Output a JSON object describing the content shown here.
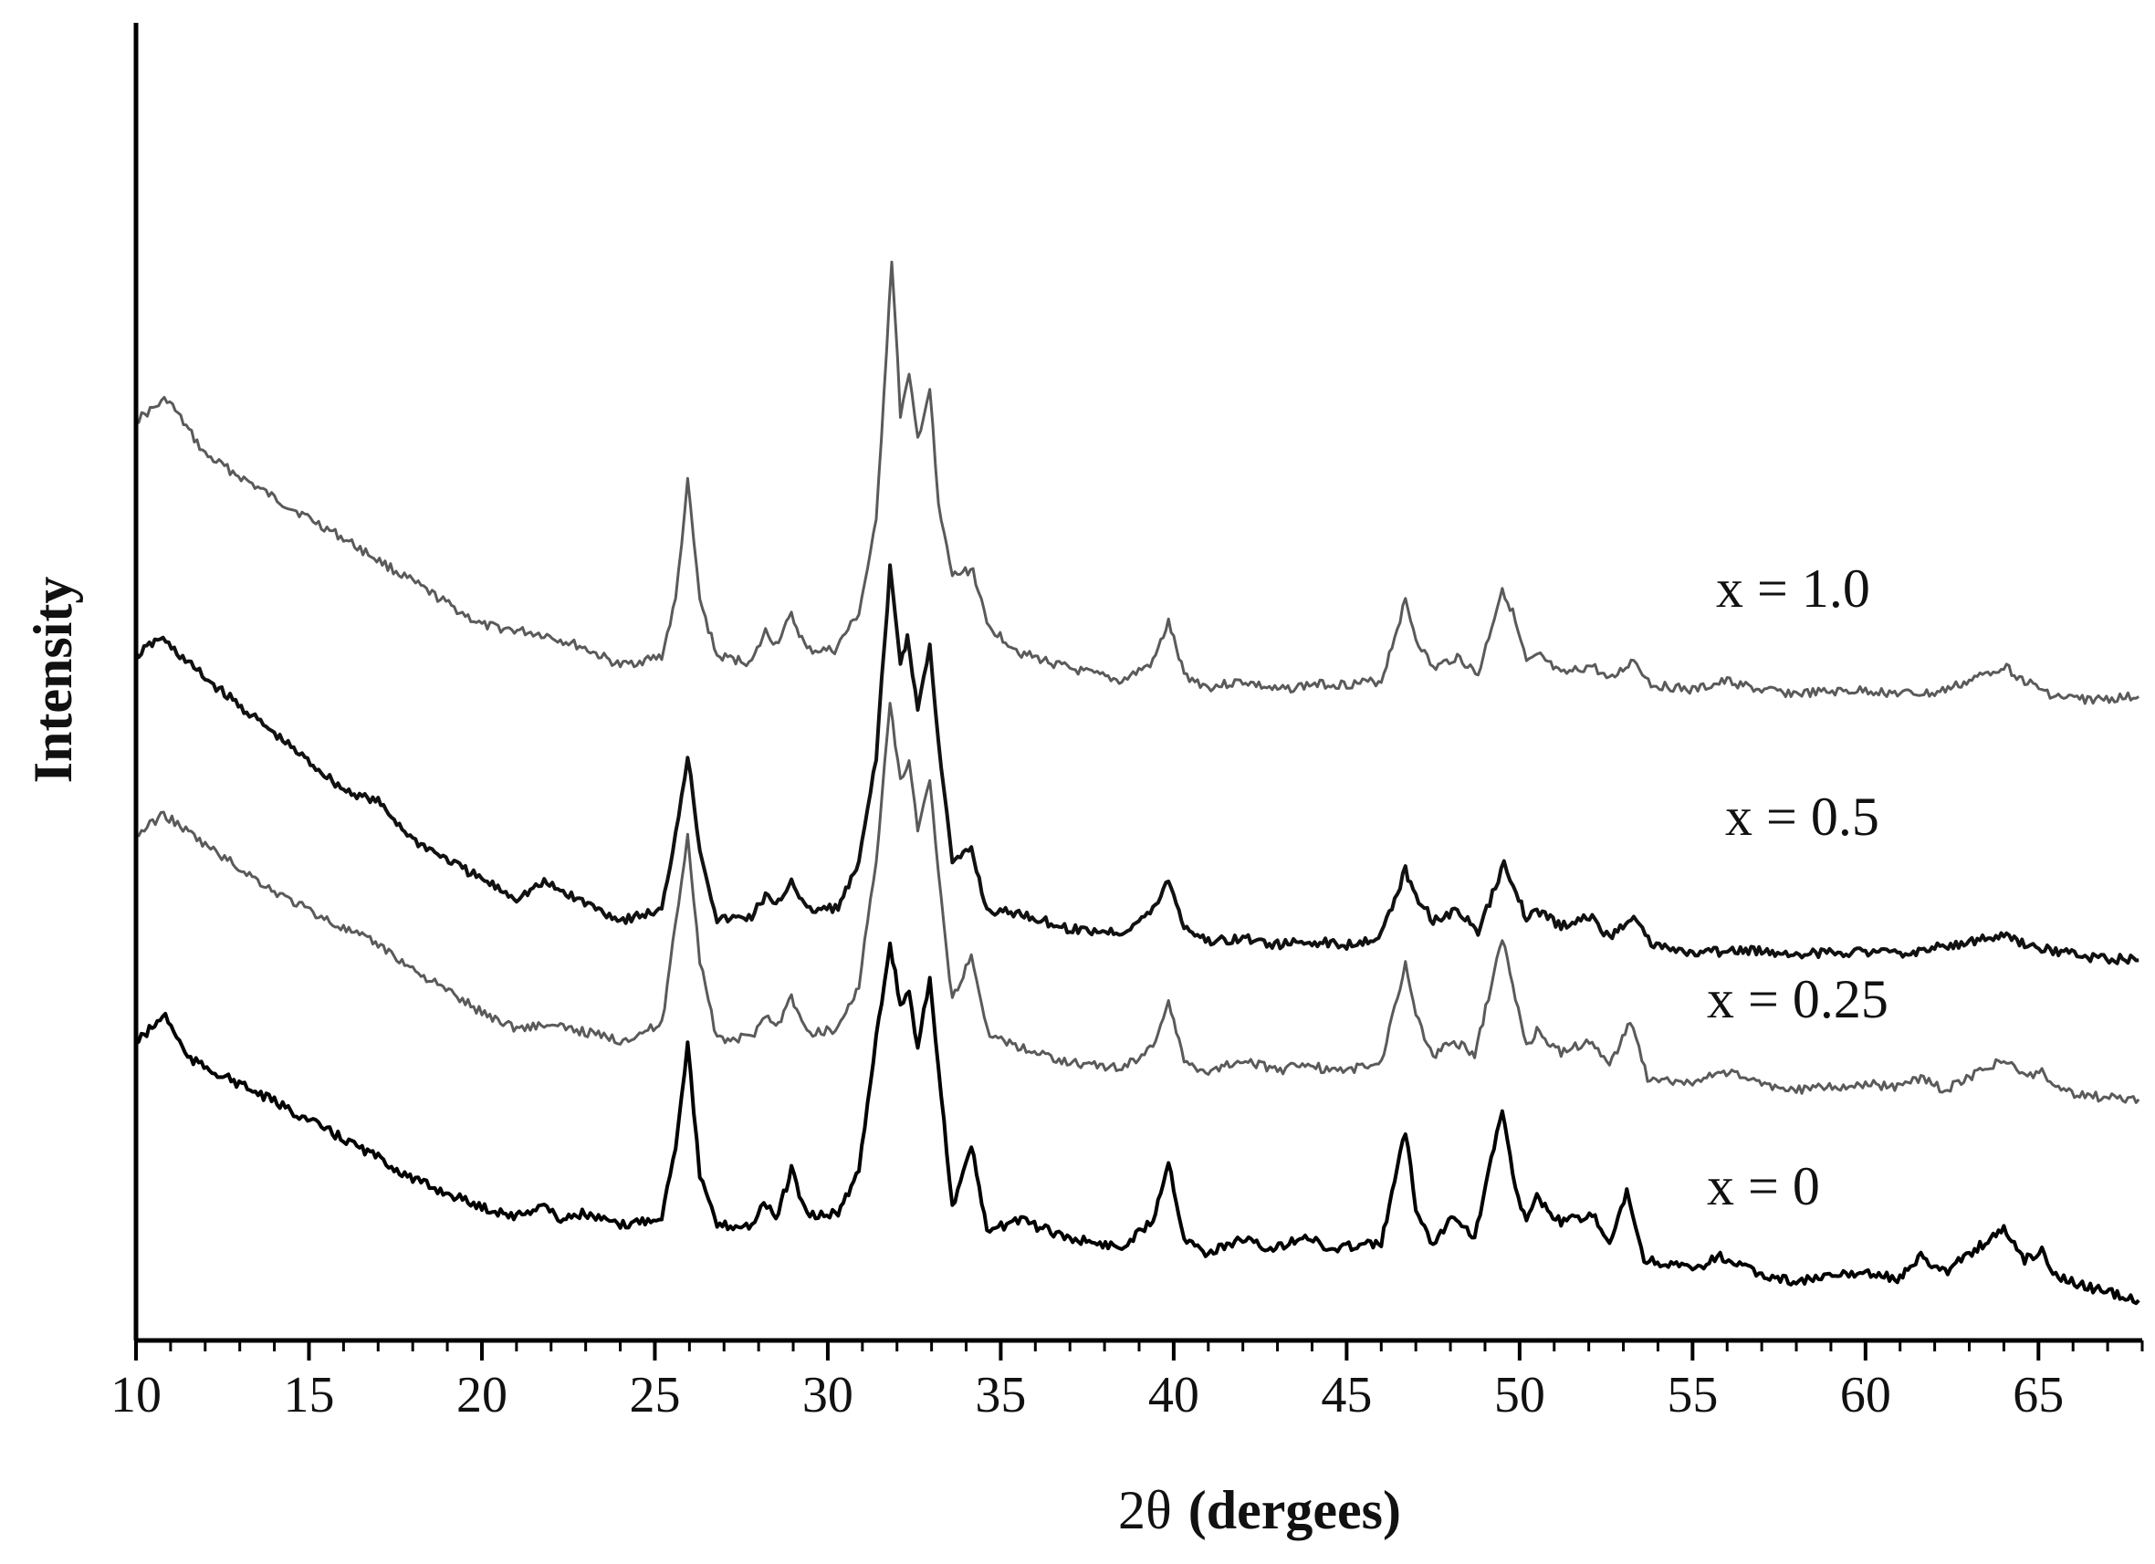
{
  "chart_data": {
    "type": "line",
    "title": "",
    "xlabel_symbol": "2θ",
    "xlabel_unit": "(dergees)",
    "ylabel": "Intensity",
    "xlim": [
      10,
      68
    ],
    "x_ticks": [
      10,
      15,
      20,
      25,
      30,
      35,
      40,
      45,
      50,
      55,
      60,
      65
    ],
    "y_tick_labels": false,
    "grid": false,
    "legend": "inline labels at right",
    "series": [
      {
        "name": "x = 1.0",
        "color": "#5a5a5a",
        "points": [
          [
            10,
            0.88
          ],
          [
            10.9,
            0.95
          ],
          [
            12,
            0.77
          ],
          [
            14,
            0.63
          ],
          [
            16,
            0.5
          ],
          [
            18,
            0.36
          ],
          [
            20,
            0.22
          ],
          [
            21.8,
            0.19
          ],
          [
            22.9,
            0.15
          ],
          [
            24,
            0.09
          ],
          [
            25.2,
            0.12
          ],
          [
            25.6,
            0.3
          ],
          [
            25.95,
            0.68
          ],
          [
            26.3,
            0.3
          ],
          [
            26.8,
            0.12
          ],
          [
            27.8,
            0.1
          ],
          [
            28.2,
            0.2
          ],
          [
            28.5,
            0.16
          ],
          [
            28.95,
            0.25
          ],
          [
            29.4,
            0.14
          ],
          [
            30.2,
            0.14
          ],
          [
            30.9,
            0.26
          ],
          [
            31.4,
            0.55
          ],
          [
            31.85,
            1.4
          ],
          [
            32.1,
            0.9
          ],
          [
            32.35,
            1.02
          ],
          [
            32.6,
            0.82
          ],
          [
            32.95,
            0.98
          ],
          [
            33.2,
            0.6
          ],
          [
            33.6,
            0.38
          ],
          [
            34.2,
            0.4
          ],
          [
            34.6,
            0.22
          ],
          [
            35.6,
            0.13
          ],
          [
            37,
            0.08
          ],
          [
            38.5,
            0.04
          ],
          [
            39.4,
            0.1
          ],
          [
            39.85,
            0.23
          ],
          [
            40.3,
            0.06
          ],
          [
            41,
            0.02
          ],
          [
            42,
            0.04
          ],
          [
            43,
            0.01
          ],
          [
            44,
            0.03
          ],
          [
            45,
            0.03
          ],
          [
            46,
            0.04
          ],
          [
            46.7,
            0.3
          ],
          [
            47,
            0.18
          ],
          [
            47.5,
            0.08
          ],
          [
            48.2,
            0.12
          ],
          [
            48.8,
            0.06
          ],
          [
            49.5,
            0.34
          ],
          [
            49.8,
            0.26
          ],
          [
            50.2,
            0.1
          ],
          [
            50.6,
            0.12
          ],
          [
            51.2,
            0.06
          ],
          [
            52.1,
            0.09
          ],
          [
            52.6,
            0.04
          ],
          [
            53.3,
            0.11
          ],
          [
            53.8,
            0.03
          ],
          [
            55,
            0.01
          ],
          [
            56,
            0.04
          ],
          [
            57,
            0.01
          ],
          [
            58,
            0.0
          ],
          [
            60,
            0.01
          ],
          [
            61,
            0.0
          ],
          [
            62,
            0.0
          ],
          [
            63,
            0.04
          ],
          [
            64,
            0.09
          ],
          [
            64.6,
            0.04
          ],
          [
            65.5,
            -0.01
          ],
          [
            66.5,
            -0.02
          ],
          [
            67.9,
            -0.01
          ]
        ]
      },
      {
        "name": "x = 0.5",
        "color": "#111111",
        "points": [
          [
            10,
            0.87
          ],
          [
            10.7,
            0.93
          ],
          [
            12,
            0.8
          ],
          [
            14,
            0.62
          ],
          [
            16,
            0.44
          ],
          [
            17,
            0.4
          ],
          [
            18,
            0.28
          ],
          [
            20,
            0.15
          ],
          [
            21,
            0.09
          ],
          [
            21.8,
            0.14
          ],
          [
            22.9,
            0.08
          ],
          [
            24,
            0.02
          ],
          [
            25.2,
            0.05
          ],
          [
            25.6,
            0.3
          ],
          [
            25.95,
            0.55
          ],
          [
            26.3,
            0.25
          ],
          [
            26.8,
            0.02
          ],
          [
            27.8,
            0.03
          ],
          [
            28.2,
            0.1
          ],
          [
            28.5,
            0.06
          ],
          [
            28.95,
            0.15
          ],
          [
            29.4,
            0.05
          ],
          [
            30.3,
            0.06
          ],
          [
            30.9,
            0.2
          ],
          [
            31.4,
            0.55
          ],
          [
            31.8,
            1.15
          ],
          [
            32.1,
            0.85
          ],
          [
            32.3,
            0.93
          ],
          [
            32.6,
            0.7
          ],
          [
            32.95,
            0.9
          ],
          [
            33.2,
            0.6
          ],
          [
            33.6,
            0.2
          ],
          [
            34.15,
            0.25
          ],
          [
            34.6,
            0.05
          ],
          [
            35.6,
            0.04
          ],
          [
            37,
            -0.01
          ],
          [
            38.5,
            -0.02
          ],
          [
            39.4,
            0.05
          ],
          [
            39.85,
            0.15
          ],
          [
            40.3,
            0.0
          ],
          [
            41,
            -0.05
          ],
          [
            42,
            -0.04
          ],
          [
            43,
            -0.06
          ],
          [
            44,
            -0.05
          ],
          [
            45,
            -0.06
          ],
          [
            46,
            -0.03
          ],
          [
            46.7,
            0.18
          ],
          [
            47,
            0.1
          ],
          [
            47.5,
            0.02
          ],
          [
            48.2,
            0.05
          ],
          [
            48.8,
            -0.02
          ],
          [
            49.55,
            0.2
          ],
          [
            49.9,
            0.12
          ],
          [
            50.2,
            0.02
          ],
          [
            50.5,
            0.05
          ],
          [
            51.2,
            0.0
          ],
          [
            52.1,
            0.03
          ],
          [
            52.6,
            -0.04
          ],
          [
            53.3,
            0.04
          ],
          [
            53.8,
            -0.06
          ],
          [
            55,
            -0.09
          ],
          [
            56,
            -0.08
          ],
          [
            57,
            -0.08
          ],
          [
            58,
            -0.09
          ],
          [
            60,
            -0.08
          ],
          [
            61,
            -0.09
          ],
          [
            62,
            -0.07
          ],
          [
            63,
            -0.05
          ],
          [
            64,
            -0.03
          ],
          [
            64.6,
            -0.06
          ],
          [
            65.5,
            -0.08
          ],
          [
            66.5,
            -0.1
          ],
          [
            67.9,
            -0.11
          ]
        ]
      },
      {
        "name": "x = 0.25",
        "color": "#5a5a5a",
        "points": [
          [
            10,
            0.88
          ],
          [
            10.8,
            0.95
          ],
          [
            12,
            0.85
          ],
          [
            14,
            0.7
          ],
          [
            16,
            0.58
          ],
          [
            17,
            0.53
          ],
          [
            18,
            0.45
          ],
          [
            20,
            0.31
          ],
          [
            21,
            0.26
          ],
          [
            21.8,
            0.27
          ],
          [
            22.9,
            0.25
          ],
          [
            24,
            0.22
          ],
          [
            25.2,
            0.27
          ],
          [
            25.6,
            0.6
          ],
          [
            25.95,
            0.88
          ],
          [
            26.3,
            0.48
          ],
          [
            26.8,
            0.22
          ],
          [
            27.8,
            0.23
          ],
          [
            28.2,
            0.31
          ],
          [
            28.5,
            0.26
          ],
          [
            28.95,
            0.36
          ],
          [
            29.4,
            0.24
          ],
          [
            30.3,
            0.26
          ],
          [
            30.9,
            0.4
          ],
          [
            31.4,
            0.8
          ],
          [
            31.8,
            1.3
          ],
          [
            32.1,
            1.05
          ],
          [
            32.35,
            1.12
          ],
          [
            32.6,
            0.9
          ],
          [
            32.95,
            1.05
          ],
          [
            33.2,
            0.75
          ],
          [
            33.6,
            0.35
          ],
          [
            34.15,
            0.5
          ],
          [
            34.6,
            0.25
          ],
          [
            35.5,
            0.2
          ],
          [
            37,
            0.15
          ],
          [
            38.5,
            0.13
          ],
          [
            39.4,
            0.2
          ],
          [
            39.85,
            0.35
          ],
          [
            40.3,
            0.15
          ],
          [
            41,
            0.12
          ],
          [
            42,
            0.16
          ],
          [
            43,
            0.12
          ],
          [
            43.8,
            0.15
          ],
          [
            44.5,
            0.12
          ],
          [
            45.3,
            0.13
          ],
          [
            46,
            0.15
          ],
          [
            46.7,
            0.47
          ],
          [
            47,
            0.3
          ],
          [
            47.5,
            0.17
          ],
          [
            48.1,
            0.22
          ],
          [
            48.7,
            0.17
          ],
          [
            49.5,
            0.55
          ],
          [
            49.8,
            0.4
          ],
          [
            50.2,
            0.2
          ],
          [
            50.5,
            0.25
          ],
          [
            51.2,
            0.18
          ],
          [
            52.1,
            0.22
          ],
          [
            52.6,
            0.14
          ],
          [
            53.2,
            0.28
          ],
          [
            53.7,
            0.1
          ],
          [
            55,
            0.08
          ],
          [
            55.9,
            0.12
          ],
          [
            57,
            0.08
          ],
          [
            58,
            0.06
          ],
          [
            60,
            0.08
          ],
          [
            61,
            0.07
          ],
          [
            61.6,
            0.1
          ],
          [
            62.3,
            0.06
          ],
          [
            63,
            0.1
          ],
          [
            64,
            0.16
          ],
          [
            64.6,
            0.1
          ],
          [
            65.1,
            0.12
          ],
          [
            65.5,
            0.06
          ],
          [
            66.5,
            0.04
          ],
          [
            67.9,
            0.03
          ]
        ]
      },
      {
        "name": "x = 0",
        "color": "#000000",
        "points": [
          [
            10,
            0.83
          ],
          [
            10.85,
            0.92
          ],
          [
            11.5,
            0.78
          ],
          [
            14,
            0.64
          ],
          [
            16,
            0.52
          ],
          [
            17,
            0.46
          ],
          [
            18,
            0.39
          ],
          [
            20,
            0.3
          ],
          [
            21,
            0.27
          ],
          [
            21.8,
            0.31
          ],
          [
            22.2,
            0.26
          ],
          [
            22.9,
            0.28
          ],
          [
            24,
            0.24
          ],
          [
            25.2,
            0.27
          ],
          [
            25.6,
            0.5
          ],
          [
            25.95,
            0.83
          ],
          [
            26.3,
            0.4
          ],
          [
            26.8,
            0.24
          ],
          [
            27.8,
            0.24
          ],
          [
            28.15,
            0.32
          ],
          [
            28.5,
            0.26
          ],
          [
            28.95,
            0.42
          ],
          [
            29.4,
            0.27
          ],
          [
            30.3,
            0.28
          ],
          [
            30.9,
            0.42
          ],
          [
            31.4,
            0.85
          ],
          [
            31.8,
            1.15
          ],
          [
            32.1,
            0.95
          ],
          [
            32.35,
            1.0
          ],
          [
            32.6,
            0.8
          ],
          [
            32.95,
            1.05
          ],
          [
            33.2,
            0.75
          ],
          [
            33.6,
            0.3
          ],
          [
            34.15,
            0.5
          ],
          [
            34.6,
            0.22
          ],
          [
            35.5,
            0.26
          ],
          [
            37,
            0.2
          ],
          [
            38.5,
            0.17
          ],
          [
            39.4,
            0.26
          ],
          [
            39.85,
            0.45
          ],
          [
            40.3,
            0.2
          ],
          [
            41,
            0.15
          ],
          [
            42,
            0.2
          ],
          [
            42.8,
            0.16
          ],
          [
            43.8,
            0.21
          ],
          [
            44.5,
            0.16
          ],
          [
            45.3,
            0.18
          ],
          [
            46,
            0.18
          ],
          [
            46.7,
            0.55
          ],
          [
            47,
            0.3
          ],
          [
            47.5,
            0.18
          ],
          [
            48.1,
            0.28
          ],
          [
            48.7,
            0.2
          ],
          [
            49.5,
            0.62
          ],
          [
            49.8,
            0.4
          ],
          [
            50.2,
            0.25
          ],
          [
            50.5,
            0.33
          ],
          [
            51.2,
            0.25
          ],
          [
            52.1,
            0.28
          ],
          [
            52.6,
            0.17
          ],
          [
            53.1,
            0.35
          ],
          [
            53.6,
            0.13
          ],
          [
            55,
            0.1
          ],
          [
            55.8,
            0.14
          ],
          [
            57,
            0.08
          ],
          [
            58,
            0.06
          ],
          [
            60,
            0.09
          ],
          [
            61,
            0.07
          ],
          [
            61.6,
            0.14
          ],
          [
            62.3,
            0.09
          ],
          [
            63,
            0.15
          ],
          [
            64,
            0.23
          ],
          [
            64.6,
            0.13
          ],
          [
            65.1,
            0.16
          ],
          [
            65.5,
            0.08
          ],
          [
            66.5,
            0.04
          ],
          [
            67.9,
            0.0
          ]
        ]
      }
    ]
  }
}
